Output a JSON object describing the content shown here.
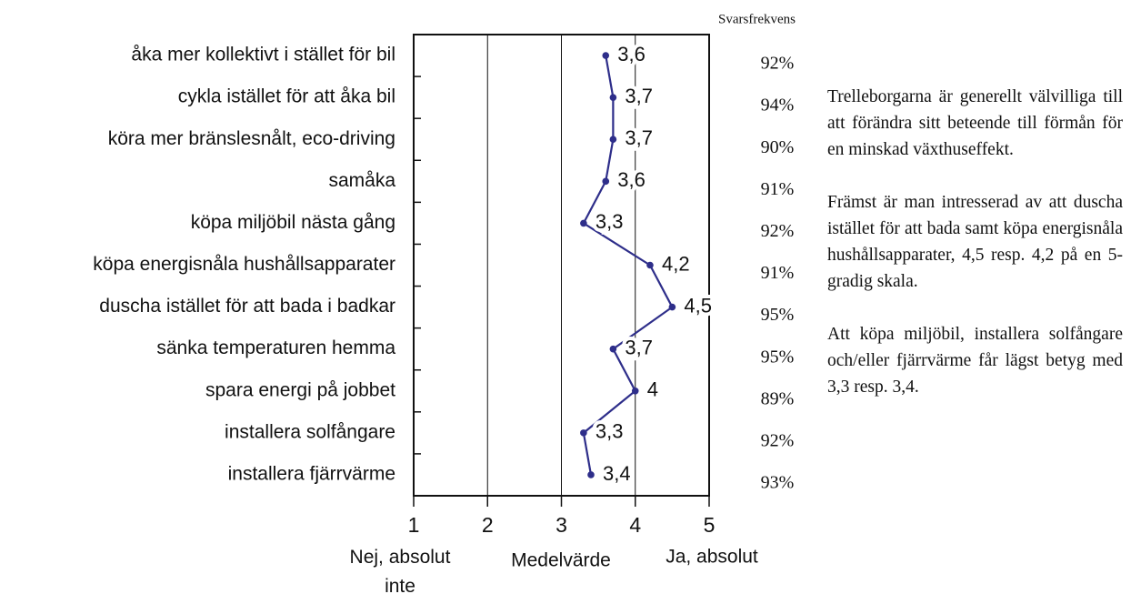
{
  "chart_data": {
    "type": "dotline",
    "categories": [
      "åka mer kollektivt i stället för bil",
      "cykla istället för att åka bil",
      "köra mer bränslesnålt, eco-driving",
      "samåka",
      "köpa miljöbil nästa gång",
      "köpa energisnåla hushållsapparater",
      "duscha istället för att bada i badkar",
      "sänka temperaturen hemma",
      "spara energi på jobbet",
      "installera solfångare",
      "installera fjärrvärme"
    ],
    "values": [
      3.6,
      3.7,
      3.7,
      3.6,
      3.3,
      4.2,
      4.5,
      3.7,
      4,
      3.3,
      3.4
    ],
    "value_labels": [
      "3,6",
      "3,7",
      "3,7",
      "3,6",
      "3,3",
      "4,2",
      "4,5",
      "3,7",
      "4",
      "3,3",
      "3,4"
    ],
    "color": "#2e2e8a",
    "xlim": [
      1,
      5
    ],
    "xticks": [
      1,
      2,
      3,
      4,
      5
    ],
    "grid": true,
    "xlabel": "Medelvärde",
    "xlow_label": "Nej, absolut inte",
    "xhigh_label": "Ja, absolut",
    "response_title": "Svarsfrekvens",
    "response_labels": [
      "92%",
      "94%",
      "90%",
      "91%",
      "92%",
      "91%",
      "95%",
      "95%",
      "89%",
      "92%",
      "93%"
    ]
  },
  "text": [
    "Trelleborgarna är generellt välvilliga till att förändra sitt beteende till förmån för en minskad växthuseffekt.",
    "Främst är man intresserad av att duscha istället för att bada samt köpa energisnåla hus­hållsapparater, 4,5 resp. 4,2 på en 5-gradig skala.",
    "Att köpa miljöbil, installera solfångare och/eller fjärrvärme får lägst betyg med 3,3 resp. 3,4."
  ]
}
